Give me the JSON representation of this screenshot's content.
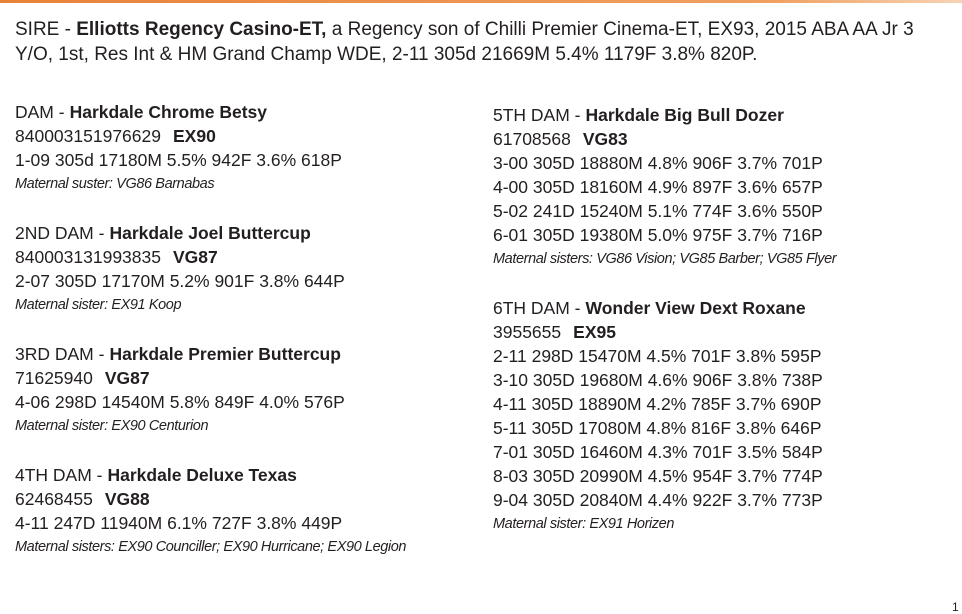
{
  "sire": {
    "label": "SIRE -",
    "name": "Elliotts Regency Casino-ET,",
    "text": "a Regency son of Chilli Premier Cinema-ET, EX93, 2015 ABA AA Jr 3 Y/O, 1st, Res Int & HM Grand Champ WDE, 2-11 305d 21669M 5.4% 1179F 3.8% 820P."
  },
  "dams": [
    {
      "label": "DAM -",
      "name": "Harkdale Chrome Betsy",
      "id": "840003151976629",
      "score": "EX90",
      "records": [
        "1-09 305d 17180M 5.5% 942F 3.6% 618P"
      ],
      "note": "Maternal suster: VG86 Barnabas"
    },
    {
      "label": "2ND DAM -",
      "name": "Harkdale Joel Buttercup",
      "id": "840003131993835",
      "score": "VG87",
      "records": [
        "2-07 305D 17170M 5.2% 901F 3.8% 644P"
      ],
      "note": "Maternal sister: EX91 Koop"
    },
    {
      "label": "3RD DAM -",
      "name": "Harkdale Premier Buttercup",
      "id": "71625940",
      "score": "VG87",
      "records": [
        "4-06 298D 14540M 5.8% 849F 4.0% 576P"
      ],
      "note": "Maternal sister: EX90 Centurion"
    },
    {
      "label": "4TH DAM -",
      "name": "Harkdale Deluxe Texas",
      "id": "62468455",
      "score": "VG88",
      "records": [
        "4-11 247D 11940M 6.1% 727F 3.8% 449P"
      ],
      "note": "Maternal sisters: EX90 Counciller; EX90 Hurricane; EX90 Legion"
    },
    {
      "label": "5TH DAM -",
      "name": "Harkdale Big Bull Dozer",
      "id": "61708568",
      "score": "VG83",
      "records": [
        "3-00 305D 18880M 4.8% 906F 3.7% 701P",
        "4-00 305D 18160M 4.9% 897F 3.6% 657P",
        "5-02 241D 15240M 5.1% 774F 3.6% 550P",
        "6-01 305D 19380M 5.0% 975F 3.7% 716P"
      ],
      "note": "Maternal sisters: VG86 Vision; VG85 Barber; VG85 Flyer"
    },
    {
      "label": "6TH DAM -",
      "name": "Wonder View Dext Roxane",
      "id": "3955655",
      "score": "EX95",
      "records": [
        "2-11 298D 15470M 4.5% 701F 3.8% 595P",
        "3-10 305D 19680M 4.6% 906F 3.8% 738P",
        "4-11 305D 18890M 4.2% 785F 3.7% 690P",
        "5-11 305D 17080M 4.8% 816F 3.8% 646P",
        "7-01 305D 16460M 4.3% 701F 3.5% 584P",
        "8-03 305D 20990M 4.5% 954F 3.7% 774P",
        "9-04 305D 20840M 4.4% 922F 3.7% 773P"
      ],
      "note": "Maternal sister: EX91 Horizen"
    }
  ],
  "page_number": "1"
}
